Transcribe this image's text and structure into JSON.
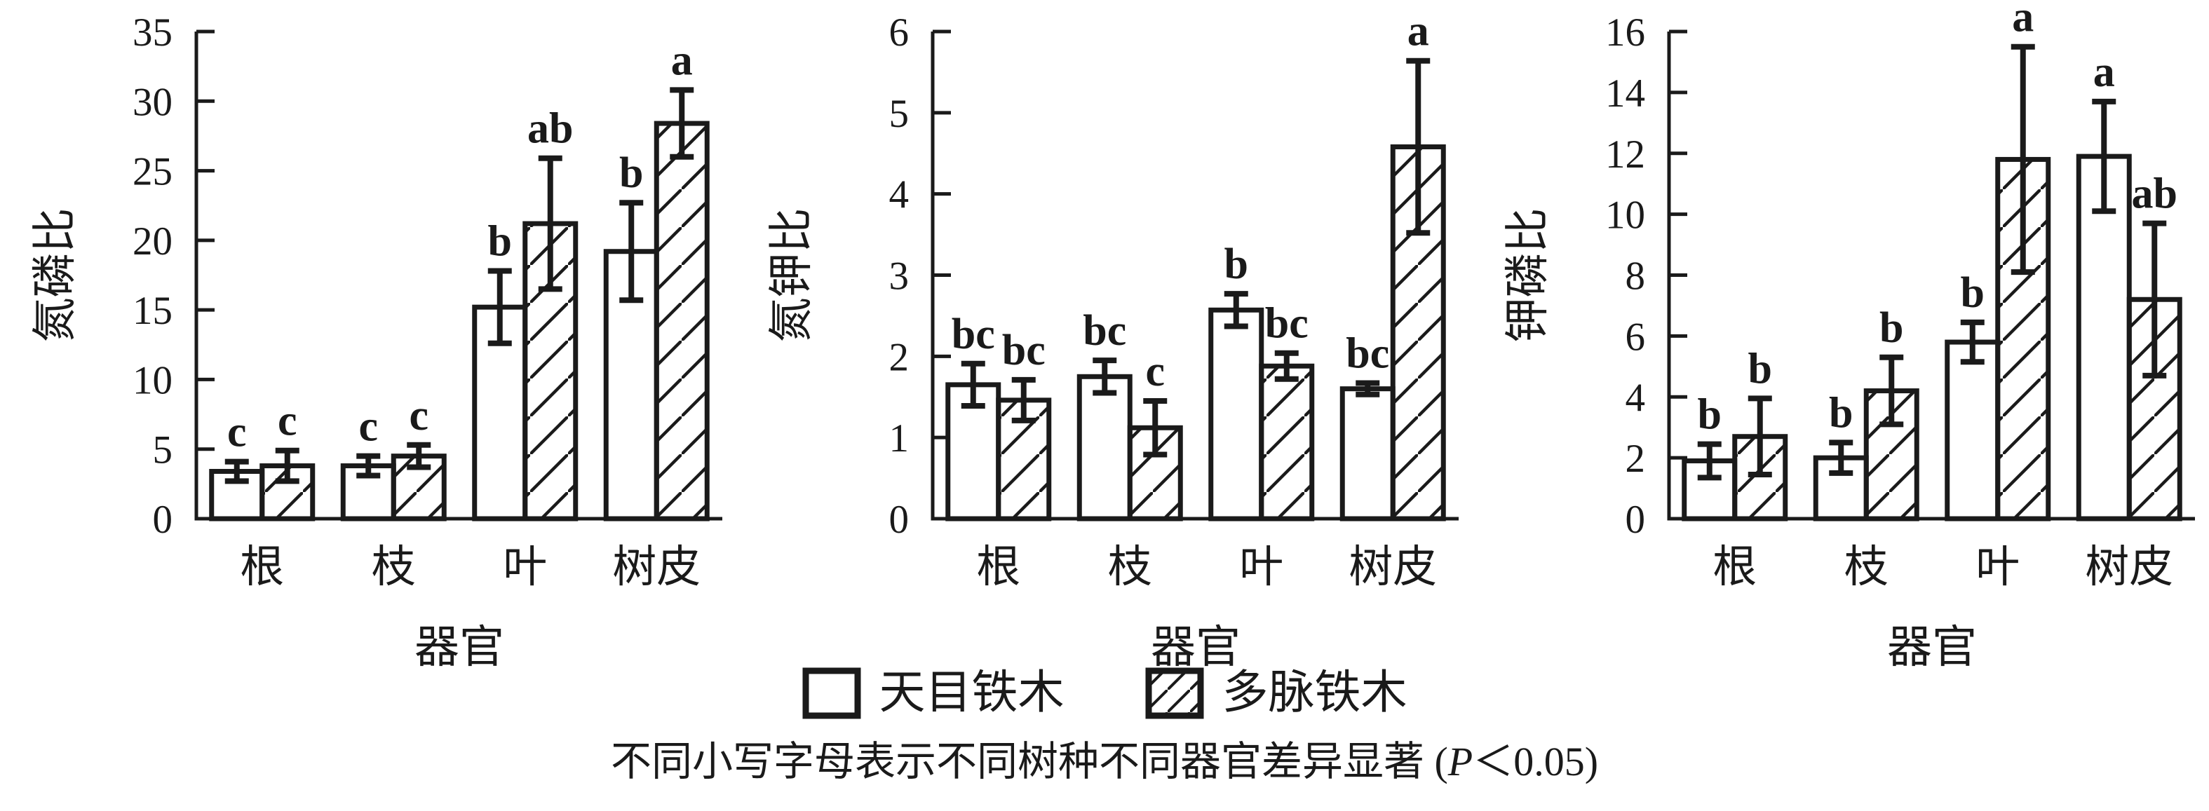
{
  "figure": {
    "background": "#ffffff",
    "ink_color": "#1a1a1a"
  },
  "chart_data": [
    {
      "type": "bar",
      "ylabel": "氮磷比",
      "xlabel": "器官",
      "ylim": [
        0,
        35
      ],
      "y_tick_step": 5,
      "grid": false,
      "categories": [
        "根",
        "枝",
        "叶",
        "树皮"
      ],
      "series": [
        {
          "name": "天目铁木",
          "fill": "plain",
          "values": [
            3.4,
            3.8,
            15.2,
            19.2
          ],
          "errors": [
            0.7,
            0.7,
            2.6,
            3.5
          ],
          "sig_letters": [
            "c",
            "c",
            "b",
            "b"
          ]
        },
        {
          "name": "多脉铁木",
          "fill": "hatched",
          "values": [
            3.8,
            4.5,
            21.2,
            28.4
          ],
          "errors": [
            1.1,
            0.8,
            4.7,
            2.4
          ],
          "sig_letters": [
            "c",
            "c",
            "ab",
            "a"
          ]
        }
      ]
    },
    {
      "type": "bar",
      "ylabel": "氮钾比",
      "xlabel": "器官",
      "ylim": [
        0,
        6
      ],
      "y_tick_step": 1,
      "grid": false,
      "categories": [
        "根",
        "枝",
        "叶",
        "树皮"
      ],
      "series": [
        {
          "name": "天目铁木",
          "fill": "plain",
          "values": [
            1.65,
            1.75,
            2.57,
            1.6
          ],
          "errors": [
            0.26,
            0.2,
            0.2,
            0.07
          ],
          "sig_letters": [
            "bc",
            "bc",
            "b",
            "bc"
          ]
        },
        {
          "name": "多脉铁木",
          "fill": "hatched",
          "values": [
            1.46,
            1.12,
            1.88,
            4.58
          ],
          "errors": [
            0.25,
            0.33,
            0.16,
            1.06
          ],
          "sig_letters": [
            "bc",
            "c",
            "bc",
            "a"
          ]
        }
      ]
    },
    {
      "type": "bar",
      "ylabel": "钾磷比",
      "xlabel": "器官",
      "ylim": [
        0,
        16
      ],
      "y_tick_step": 2,
      "grid": false,
      "categories": [
        "根",
        "枝",
        "叶",
        "树皮"
      ],
      "series": [
        {
          "name": "天目铁木",
          "fill": "plain",
          "values": [
            1.9,
            2.0,
            5.8,
            11.9
          ],
          "errors": [
            0.55,
            0.5,
            0.65,
            1.8
          ],
          "sig_letters": [
            "b",
            "b",
            "b",
            "a"
          ]
        },
        {
          "name": "多脉铁木",
          "fill": "hatched",
          "values": [
            2.7,
            4.2,
            11.8,
            7.2
          ],
          "errors": [
            1.25,
            1.1,
            3.7,
            2.5
          ],
          "sig_letters": [
            "b",
            "b",
            "a",
            "ab"
          ]
        }
      ]
    }
  ],
  "legend": {
    "items": [
      {
        "label": "天目铁木",
        "swatch": "plain"
      },
      {
        "label": "多脉铁木",
        "swatch": "hatched"
      }
    ]
  },
  "caption": {
    "prefix": "不同小写字母表示不同树种不同器官差异显著 (",
    "p": "P",
    "suffix": "＜0.05)"
  }
}
